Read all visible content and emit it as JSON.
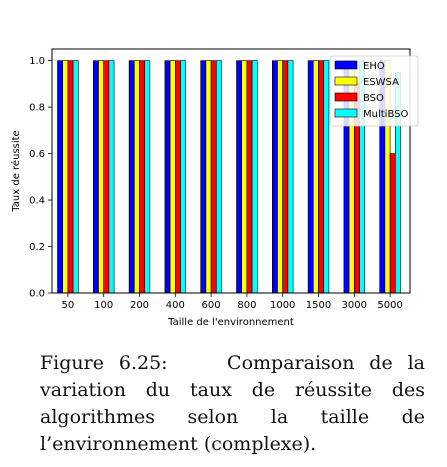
{
  "chart_data": {
    "type": "bar",
    "xlabel": "Taille de l'environnement",
    "ylabel": "Taux de réussite",
    "categories": [
      "50",
      "100",
      "200",
      "400",
      "600",
      "800",
      "1000",
      "1500",
      "3000",
      "5000"
    ],
    "ylim": [
      0.0,
      1.05
    ],
    "yticks": [
      "0.0",
      "0.2",
      "0.4",
      "0.6",
      "0.8",
      "1.0"
    ],
    "grid": false,
    "legend_position": "top-right",
    "series": [
      {
        "name": "EHO",
        "color": "#0000ff",
        "values": [
          1,
          1,
          1,
          1,
          1,
          1,
          1,
          1,
          1,
          1
        ]
      },
      {
        "name": "ESWSA",
        "color": "#ffff00",
        "values": [
          1,
          1,
          1,
          1,
          1,
          1,
          1,
          1,
          1,
          1
        ]
      },
      {
        "name": "BSO",
        "color": "#ff0000",
        "values": [
          1,
          1,
          1,
          1,
          1,
          1,
          1,
          1,
          0.9,
          0.6
        ]
      },
      {
        "name": "MultiBSO",
        "color": "#00ffff",
        "values": [
          1,
          1,
          1,
          1,
          1,
          1,
          1,
          1,
          1,
          0.95
        ]
      }
    ]
  },
  "caption": {
    "label": "Figure 6.25:",
    "text": "Comparaison de la variation du taux de réussite des algorithmes selon la taille de l’environnement (complexe)."
  }
}
